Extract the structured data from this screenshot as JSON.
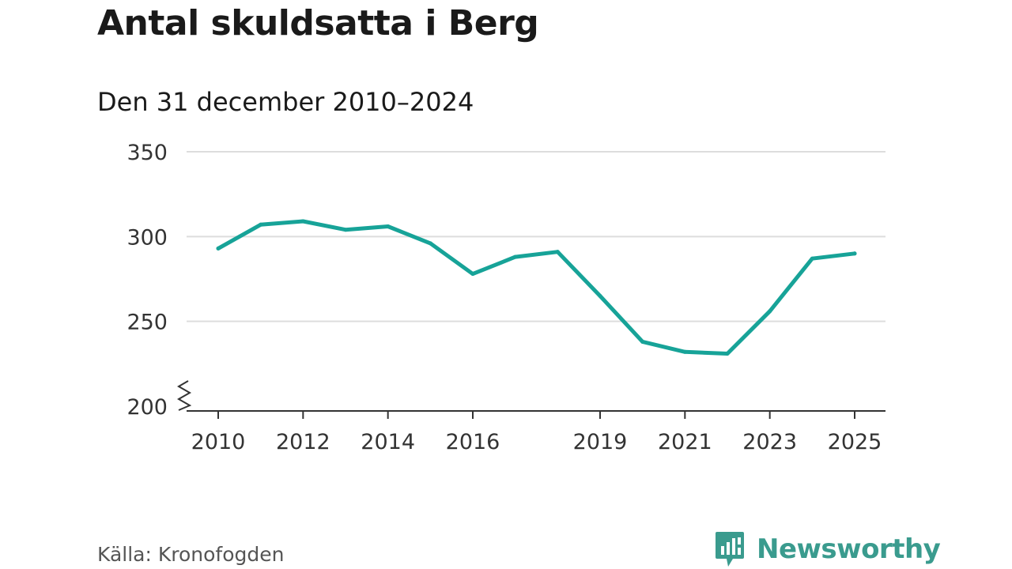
{
  "title": "Antal skuldsatta i Berg",
  "subtitle": "Den 31 december 2010–2024",
  "source": "Källa: Kronofogden",
  "brand": "Newsworthy",
  "colors": {
    "line": "#17a398",
    "grid": "#dddddd",
    "axis": "#333333",
    "brand": "#3a9b8e"
  },
  "chart_data": {
    "type": "line",
    "title": "Antal skuldsatta i Berg",
    "subtitle": "Den 31 december 2010–2024",
    "xlabel": "",
    "ylabel": "",
    "x": [
      2010,
      2011,
      2012,
      2013,
      2014,
      2015,
      2016,
      2017,
      2018,
      2019,
      2020,
      2021,
      2022,
      2023,
      2024,
      2025
    ],
    "series": [
      {
        "name": "Antal skuldsatta",
        "values": [
          293,
          307,
          309,
          304,
          306,
          296,
          278,
          288,
          291,
          265,
          238,
          232,
          231,
          256,
          287,
          290
        ]
      }
    ],
    "xlim": [
      2010,
      2025
    ],
    "ylim": [
      200,
      350
    ],
    "yticks": [
      200,
      250,
      300,
      350
    ],
    "xticks": [
      2010,
      2012,
      2014,
      2016,
      2019,
      2021,
      2023,
      2025
    ],
    "axis_break": true,
    "grid": true
  }
}
